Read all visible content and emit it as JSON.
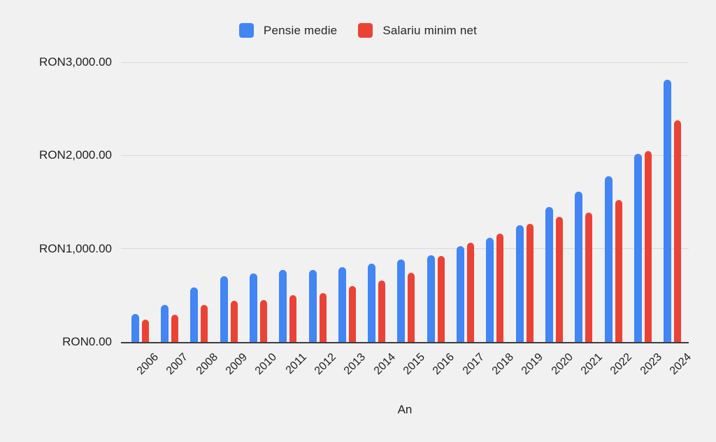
{
  "chart_data": {
    "type": "bar",
    "title": "",
    "xlabel": "An",
    "ylabel": "",
    "ylim": [
      0,
      3000
    ],
    "grid": true,
    "legend_position": "top-center",
    "categories": [
      "2006",
      "2007",
      "2008",
      "2009",
      "2010",
      "2011",
      "2012",
      "2013",
      "2014",
      "2015",
      "2016",
      "2017",
      "2018",
      "2019",
      "2020",
      "2021",
      "2022",
      "2023",
      "2024"
    ],
    "series": [
      {
        "name": "Pensie medie",
        "color": "#4285f4",
        "values": [
          300,
          395,
          585,
          705,
          735,
          770,
          775,
          805,
          840,
          885,
          930,
          1030,
          1120,
          1250,
          1450,
          1610,
          1775,
          2020,
          2815
        ]
      },
      {
        "name": "Salariu minim net",
        "color": "#ea4335",
        "values": [
          240,
          290,
          400,
          440,
          450,
          500,
          525,
          600,
          660,
          745,
          920,
          1065,
          1160,
          1265,
          1345,
          1385,
          1525,
          2050,
          2375
        ]
      }
    ],
    "y_ticks": [
      {
        "label": "RON0.00",
        "value": 0
      },
      {
        "label": "RON1,000.00",
        "value": 1000
      },
      {
        "label": "RON2,000.00",
        "value": 2000
      },
      {
        "label": "RON3,000.00",
        "value": 3000
      }
    ]
  },
  "colors": {
    "background": "#f1f1f2",
    "gridline": "#d9d9d9",
    "axis_line": "#3d3d3d",
    "label_text": "#212121"
  }
}
